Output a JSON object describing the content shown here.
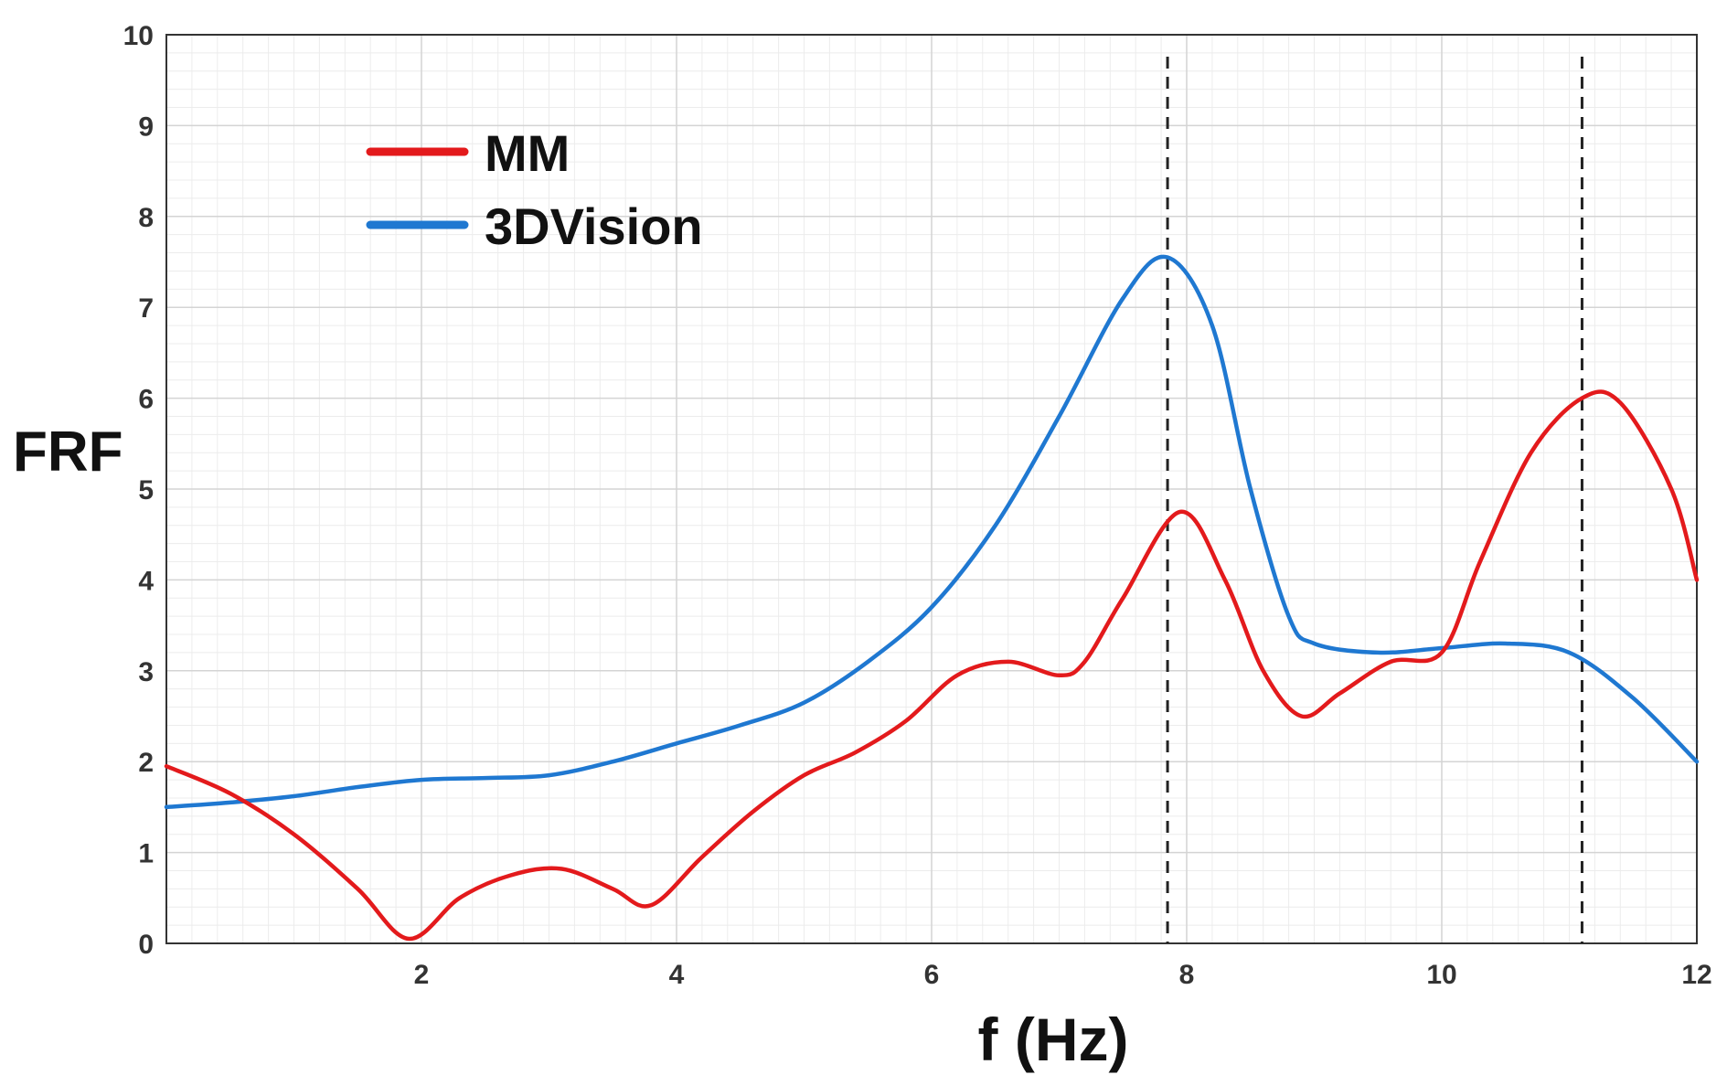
{
  "chart_data": {
    "type": "line",
    "title": "",
    "xlabel": "f (Hz)",
    "ylabel": "FRF",
    "xlim": [
      0,
      12
    ],
    "ylim": [
      0,
      10
    ],
    "xticks": [
      2,
      4,
      6,
      8,
      10,
      12
    ],
    "yticks": [
      0,
      1,
      2,
      3,
      4,
      5,
      6,
      7,
      8,
      9,
      10
    ],
    "grid": true,
    "legend_position": "top-left",
    "vlines": [
      7.85,
      11.1
    ],
    "series": [
      {
        "name": "MM",
        "color": "#e31a1c",
        "x": [
          0,
          0.5,
          1.0,
          1.5,
          1.9,
          2.3,
          2.7,
          3.1,
          3.5,
          3.8,
          4.2,
          4.6,
          5.0,
          5.4,
          5.8,
          6.2,
          6.6,
          7.0,
          7.2,
          7.5,
          7.95,
          8.3,
          8.6,
          8.9,
          9.2,
          9.6,
          10.0,
          10.3,
          10.7,
          11.1,
          11.4,
          11.8,
          12.0
        ],
        "y": [
          1.95,
          1.65,
          1.2,
          0.6,
          0.05,
          0.5,
          0.75,
          0.82,
          0.6,
          0.42,
          0.95,
          1.45,
          1.85,
          2.1,
          2.45,
          2.95,
          3.1,
          2.95,
          3.1,
          3.8,
          4.75,
          4.0,
          3.0,
          2.5,
          2.75,
          3.1,
          3.2,
          4.2,
          5.4,
          6.0,
          5.95,
          5.0,
          4.0
        ]
      },
      {
        "name": "3DVision",
        "color": "#1f78d1",
        "x": [
          0,
          0.5,
          1.0,
          1.5,
          2.0,
          2.5,
          3.0,
          3.5,
          4.0,
          4.5,
          5.0,
          5.5,
          6.0,
          6.5,
          7.0,
          7.5,
          7.85,
          8.2,
          8.5,
          8.8,
          9.0,
          9.5,
          10.0,
          10.5,
          11.0,
          11.5,
          12.0
        ],
        "y": [
          1.5,
          1.55,
          1.62,
          1.72,
          1.8,
          1.82,
          1.85,
          2.0,
          2.2,
          2.4,
          2.65,
          3.1,
          3.7,
          4.6,
          5.8,
          7.1,
          7.55,
          6.8,
          5.0,
          3.6,
          3.3,
          3.2,
          3.25,
          3.3,
          3.2,
          2.7,
          2.0
        ]
      }
    ]
  }
}
